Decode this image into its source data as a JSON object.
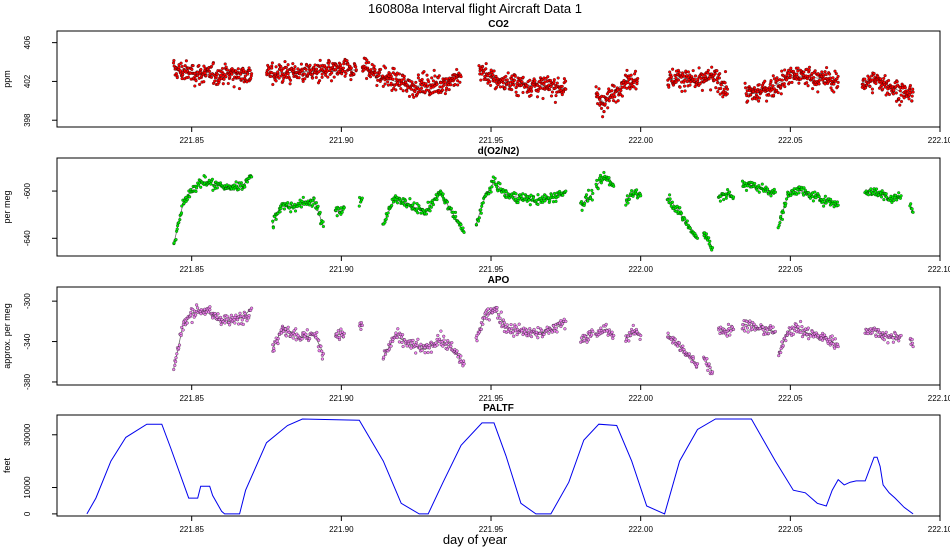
{
  "figure": {
    "title": "160808a   Interval flight Aircraft Data 1",
    "xlabel": "day of year"
  },
  "colors": {
    "co2_fill": "#ff0000",
    "o2_fill": "#00ee00",
    "apo_fill": "#ee82ee",
    "paltf_line": "#0000ee",
    "point_outline": "#000000"
  },
  "chart_data": [
    {
      "type": "scatter",
      "title": "CO2",
      "ylabel": "ppm",
      "xlim": [
        221.805,
        222.1
      ],
      "ylim": [
        397.3,
        407.2
      ],
      "yticks": [
        398,
        402,
        406
      ],
      "xticks": [
        221.85,
        221.9,
        221.95,
        222.0,
        222.05,
        222.1
      ],
      "xtick_labels": [
        "221.85",
        "221.90",
        "221.95",
        "222.00",
        "222.05",
        "222.10"
      ],
      "segments": [
        {
          "x": [
            221.844,
            221.85,
            221.857,
            221.864,
            221.87
          ],
          "y": [
            403.2,
            402.9,
            402.7,
            402.8,
            402.8
          ]
        },
        {
          "x": [
            221.875,
            221.881,
            221.888,
            221.895,
            221.9,
            221.905
          ],
          "y": [
            402.8,
            402.9,
            403.0,
            403.0,
            403.1,
            403.2
          ]
        },
        {
          "x": [
            221.907,
            221.912,
            221.918,
            221.924,
            221.93,
            221.935,
            221.94
          ],
          "y": [
            403.6,
            402.7,
            402.0,
            401.5,
            401.6,
            401.9,
            402.5
          ]
        },
        {
          "x": [
            221.946,
            221.951,
            221.957,
            221.963,
            221.969,
            221.975
          ],
          "y": [
            403.3,
            402.1,
            401.8,
            401.6,
            401.5,
            401.2
          ]
        },
        {
          "x": [
            221.985,
            221.988,
            221.991,
            221.995,
            221.999
          ],
          "y": [
            400.7,
            399.7,
            400.8,
            402.1,
            402.3
          ]
        },
        {
          "x": [
            222.009,
            222.014,
            222.019,
            222.024,
            222.029
          ],
          "y": [
            402.2,
            402.4,
            401.8,
            402.5,
            401.2
          ]
        },
        {
          "x": [
            222.035,
            222.039,
            222.044,
            222.05,
            222.056,
            222.062,
            222.066
          ],
          "y": [
            400.7,
            400.8,
            401.4,
            402.6,
            402.5,
            402.2,
            401.9
          ]
        },
        {
          "x": [
            222.074,
            222.079,
            222.084,
            222.089,
            222.091
          ],
          "y": [
            401.9,
            402.1,
            401.4,
            400.6,
            400.9
          ]
        }
      ]
    },
    {
      "type": "scatter",
      "title": "d(O2/N2)",
      "ylabel": "per meg",
      "xlim": [
        221.805,
        222.1
      ],
      "ylim": [
        -655,
        -572
      ],
      "yticks": [
        -640,
        -600
      ],
      "xticks": [
        221.85,
        221.9,
        221.95,
        222.0,
        222.05,
        222.1
      ],
      "xtick_labels": [
        "221.85",
        "221.90",
        "221.95",
        "222.00",
        "222.05",
        "222.10"
      ],
      "segments": [
        {
          "x": [
            221.844,
            221.847,
            221.85,
            221.854,
            221.858,
            221.863,
            221.867,
            221.87
          ],
          "y": [
            -645,
            -612,
            -598,
            -592,
            -595,
            -597,
            -595,
            -588
          ]
        },
        {
          "x": [
            221.877,
            221.88,
            221.883,
            221.887,
            221.891,
            221.894
          ],
          "y": [
            -628,
            -612,
            -614,
            -610,
            -608,
            -630
          ]
        },
        {
          "x": [
            221.898,
            221.901
          ],
          "y": [
            -618,
            -614
          ]
        },
        {
          "x": [
            221.906,
            221.907
          ],
          "y": [
            -610,
            -606
          ]
        },
        {
          "x": [
            221.914,
            221.918,
            221.923,
            221.928,
            221.933,
            221.937,
            221.941
          ],
          "y": [
            -628,
            -605,
            -612,
            -618,
            -601,
            -618,
            -635
          ]
        },
        {
          "x": [
            221.945,
            221.948,
            221.951,
            221.955,
            221.96,
            221.966,
            221.971,
            221.975
          ],
          "y": [
            -628,
            -605,
            -592,
            -603,
            -606,
            -608,
            -605,
            -600
          ]
        },
        {
          "x": [
            221.98,
            221.984
          ],
          "y": [
            -612,
            -602
          ]
        },
        {
          "x": [
            221.985,
            221.988,
            221.991
          ],
          "y": [
            -596,
            -588,
            -596
          ]
        },
        {
          "x": [
            221.995,
            221.998,
            222.0
          ],
          "y": [
            -608,
            -600,
            -604
          ]
        },
        {
          "x": [
            222.009,
            222.013,
            222.016,
            222.019
          ],
          "y": [
            -605,
            -618,
            -630,
            -640
          ]
        },
        {
          "x": [
            222.021,
            222.024
          ],
          "y": [
            -635,
            -648
          ]
        },
        {
          "x": [
            222.026,
            222.029,
            222.031
          ],
          "y": [
            -605,
            -603,
            -605
          ]
        },
        {
          "x": [
            222.034,
            222.037,
            222.041,
            222.045
          ],
          "y": [
            -594,
            -595,
            -598,
            -601
          ]
        },
        {
          "x": [
            222.046,
            222.049,
            222.052,
            222.056,
            222.06,
            222.064,
            222.066
          ],
          "y": [
            -630,
            -605,
            -598,
            -603,
            -606,
            -610,
            -612
          ]
        },
        {
          "x": [
            222.075,
            222.079,
            222.083,
            222.087
          ],
          "y": [
            -600,
            -601,
            -606,
            -604
          ]
        },
        {
          "x": [
            222.09,
            222.091
          ],
          "y": [
            -612,
            -618
          ]
        }
      ]
    },
    {
      "type": "scatter",
      "title": "APO",
      "ylabel": "approx. per meg",
      "xlim": [
        221.805,
        222.1
      ],
      "ylim": [
        -383,
        -286
      ],
      "yticks": [
        -380,
        -340,
        -300
      ],
      "xticks": [
        221.85,
        221.9,
        221.95,
        222.0,
        222.05,
        222.1
      ],
      "xtick_labels": [
        "221.85",
        "221.90",
        "221.95",
        "222.00",
        "222.05",
        "222.10"
      ],
      "segments": [
        {
          "x": [
            221.844,
            221.847,
            221.85,
            221.854,
            221.858,
            221.863,
            221.867,
            221.87
          ],
          "y": [
            -367,
            -325,
            -312,
            -308,
            -316,
            -320,
            -316,
            -307
          ]
        },
        {
          "x": [
            221.877,
            221.88,
            221.883,
            221.887,
            221.891,
            221.894
          ],
          "y": [
            -348,
            -328,
            -330,
            -336,
            -333,
            -352
          ]
        },
        {
          "x": [
            221.898,
            221.901
          ],
          "y": [
            -334,
            -332
          ]
        },
        {
          "x": [
            221.906,
            221.907
          ],
          "y": [
            -326,
            -324
          ]
        },
        {
          "x": [
            221.914,
            221.918,
            221.923,
            221.928,
            221.933,
            221.937,
            221.941
          ],
          "y": [
            -356,
            -334,
            -343,
            -348,
            -338,
            -347,
            -362
          ]
        },
        {
          "x": [
            221.945,
            221.948,
            221.951,
            221.955,
            221.96,
            221.966,
            221.971,
            221.975
          ],
          "y": [
            -338,
            -315,
            -307,
            -326,
            -330,
            -332,
            -328,
            -320
          ]
        },
        {
          "x": [
            221.98,
            221.984
          ],
          "y": [
            -338,
            -330
          ]
        },
        {
          "x": [
            221.985,
            221.988,
            221.991
          ],
          "y": [
            -336,
            -328,
            -334
          ]
        },
        {
          "x": [
            221.995,
            221.998,
            222.0
          ],
          "y": [
            -337,
            -330,
            -334
          ]
        },
        {
          "x": [
            222.009,
            222.013,
            222.016,
            222.019
          ],
          "y": [
            -332,
            -345,
            -355,
            -362
          ]
        },
        {
          "x": [
            222.021,
            222.024
          ],
          "y": [
            -355,
            -370
          ]
        },
        {
          "x": [
            222.026,
            222.029,
            222.031
          ],
          "y": [
            -327,
            -330,
            -328
          ]
        },
        {
          "x": [
            222.034,
            222.037,
            222.041,
            222.045
          ],
          "y": [
            -322,
            -325,
            -328,
            -330
          ]
        },
        {
          "x": [
            222.046,
            222.049,
            222.052,
            222.056,
            222.06,
            222.064,
            222.066
          ],
          "y": [
            -355,
            -330,
            -326,
            -332,
            -335,
            -340,
            -345
          ]
        },
        {
          "x": [
            222.075,
            222.079,
            222.083,
            222.087
          ],
          "y": [
            -328,
            -330,
            -336,
            -334
          ]
        },
        {
          "x": [
            222.09,
            222.091
          ],
          "y": [
            -338,
            -345
          ]
        }
      ]
    },
    {
      "type": "line",
      "title": "PALTF",
      "ylabel": "feet",
      "xlim": [
        221.805,
        222.1
      ],
      "ylim": [
        -800,
        37500
      ],
      "yticks": [
        0,
        10000,
        30000
      ],
      "xticks": [
        221.85,
        221.9,
        221.95,
        222.0,
        222.05,
        222.1
      ],
      "xtick_labels": [
        "221.85",
        "221.90",
        "221.95",
        "222.00",
        "222.05",
        "222.10"
      ],
      "x": [
        221.815,
        221.818,
        221.823,
        221.828,
        221.835,
        221.84,
        221.843,
        221.849,
        221.852,
        221.853,
        221.856,
        221.857,
        221.86,
        221.861,
        221.866,
        221.868,
        221.875,
        221.882,
        221.887,
        221.906,
        221.914,
        221.92,
        221.926,
        221.929,
        221.934,
        221.94,
        221.947,
        221.951,
        221.955,
        221.96,
        221.965,
        221.97,
        221.976,
        221.981,
        221.986,
        221.992,
        221.997,
        222.002,
        222.008,
        222.013,
        222.019,
        222.025,
        222.032,
        222.037,
        222.045,
        222.051,
        222.055,
        222.059,
        222.062,
        222.064,
        222.066,
        222.068,
        222.07,
        222.072,
        222.075,
        222.078,
        222.079,
        222.08,
        222.081,
        222.083,
        222.085,
        222.088,
        222.091
      ],
      "y": [
        0,
        6000,
        20000,
        29000,
        34000,
        34000,
        25000,
        6000,
        6000,
        10500,
        10500,
        7000,
        1000,
        0,
        0,
        9000,
        27000,
        33500,
        36000,
        35500,
        20000,
        4000,
        0,
        0,
        12000,
        26000,
        34500,
        34500,
        22000,
        4000,
        0,
        0,
        12000,
        28000,
        34000,
        33500,
        20000,
        3000,
        0,
        20000,
        32000,
        36000,
        36000,
        36000,
        20000,
        9000,
        8000,
        4000,
        3000,
        9000,
        13000,
        11000,
        12000,
        12500,
        12500,
        21500,
        21500,
        18000,
        11000,
        8000,
        6000,
        2500,
        0
      ]
    }
  ]
}
